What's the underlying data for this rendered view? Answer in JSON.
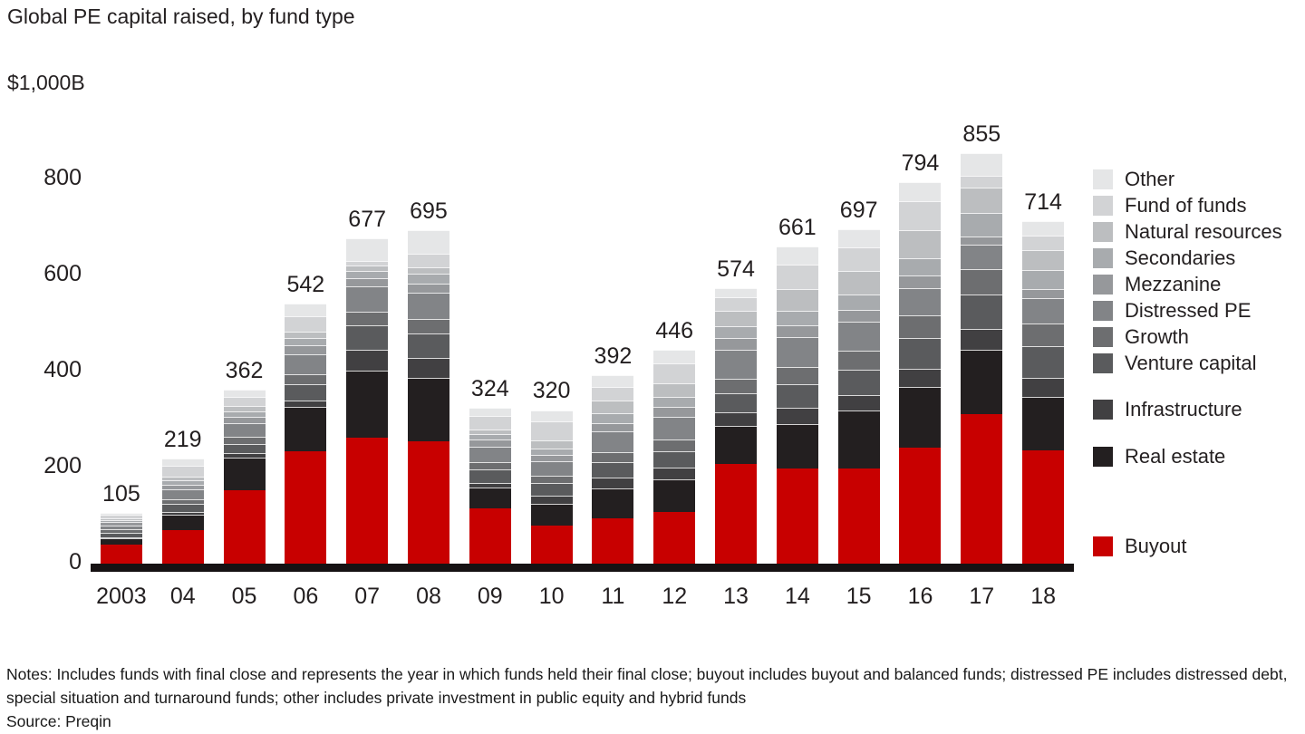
{
  "title": "Global PE capital raised, by fund type",
  "y_axis": {
    "unit_label": "$1,000B",
    "ticks": [
      0,
      200,
      400,
      600,
      800
    ]
  },
  "notes": "Notes: Includes funds with final close and represents the year in which funds held their final close; buyout includes buyout and balanced funds; distressed PE includes distressed debt, special situation and turnaround funds; other includes private investment in public equity and hybrid funds",
  "source": "Source: Preqin",
  "chart_data": {
    "type": "bar",
    "stacked": true,
    "title": "Global PE capital raised, by fund type",
    "unit": "$B",
    "ylim": [
      0,
      1000
    ],
    "grid": false,
    "legend_position": "right",
    "categories": [
      "2003",
      "04",
      "05",
      "06",
      "07",
      "08",
      "09",
      "10",
      "11",
      "12",
      "13",
      "14",
      "15",
      "16",
      "17",
      "18"
    ],
    "totals": [
      105,
      219,
      362,
      542,
      677,
      695,
      324,
      320,
      392,
      446,
      574,
      661,
      697,
      794,
      855,
      714
    ],
    "series": [
      {
        "key": "buyout",
        "name": "Buyout",
        "color": "#c80000",
        "values": [
          40,
          70,
          152,
          234,
          262,
          254,
          116,
          79,
          95,
          108,
          207,
          199,
          199,
          242,
          312,
          235
        ]
      },
      {
        "key": "real_estate",
        "name": "Real estate",
        "color": "#231f20",
        "values": [
          12,
          32,
          68,
          92,
          140,
          132,
          42,
          45,
          62,
          68,
          80,
          92,
          120,
          126,
          134,
          112
        ]
      },
      {
        "key": "infrastructure",
        "name": "Infrastructure",
        "color": "#414042",
        "values": [
          3,
          6,
          10,
          14,
          44,
          42,
          10,
          18,
          22,
          24,
          28,
          34,
          32,
          38,
          43,
          40
        ]
      },
      {
        "key": "venture_capital",
        "name": "Venture capital",
        "color": "#5a5b5d",
        "values": [
          10,
          16,
          20,
          34,
          50,
          52,
          28,
          26,
          32,
          34,
          40,
          48,
          52,
          64,
          72,
          66
        ]
      },
      {
        "key": "growth",
        "name": "Growth",
        "color": "#6d6e70",
        "values": [
          6,
          10,
          14,
          20,
          29,
          30,
          16,
          16,
          22,
          24,
          30,
          36,
          40,
          48,
          52,
          48
        ]
      },
      {
        "key": "distressed_pe",
        "name": "Distressed PE",
        "color": "#828487",
        "values": [
          9,
          20,
          28,
          42,
          53,
          55,
          32,
          30,
          42,
          48,
          60,
          62,
          60,
          56,
          52,
          52
        ]
      },
      {
        "key": "mezzanine",
        "name": "Mezzanine",
        "color": "#96989b",
        "values": [
          6,
          10,
          14,
          18,
          16,
          18,
          14,
          12,
          18,
          20,
          24,
          26,
          26,
          26,
          16,
          18
        ]
      },
      {
        "key": "secondaries",
        "name": "Secondaries",
        "color": "#a8abae",
        "values": [
          5,
          10,
          12,
          16,
          16,
          20,
          12,
          14,
          20,
          22,
          26,
          30,
          32,
          36,
          50,
          40
        ]
      },
      {
        "key": "natural_resources",
        "name": "Natural resources",
        "color": "#bcbec0",
        "values": [
          4,
          8,
          10,
          14,
          10,
          14,
          10,
          16,
          26,
          28,
          32,
          45,
          48,
          58,
          52,
          42
        ]
      },
      {
        "key": "fund_of_funds",
        "name": "Fund of funds",
        "color": "#d2d3d5",
        "values": [
          7,
          22,
          20,
          32,
          10,
          28,
          28,
          40,
          30,
          42,
          28,
          50,
          50,
          60,
          24,
          30
        ]
      },
      {
        "key": "other",
        "name": "Other",
        "color": "#e5e6e7",
        "values": [
          3,
          15,
          14,
          26,
          47,
          50,
          16,
          24,
          23,
          28,
          19,
          39,
          38,
          40,
          48,
          31
        ]
      }
    ]
  },
  "legend": {
    "groups": [
      [
        "other",
        "fund_of_funds",
        "natural_resources",
        "secondaries",
        "mezzanine",
        "distressed_pe",
        "growth",
        "venture_capital"
      ],
      [
        "infrastructure"
      ],
      [
        "real_estate"
      ],
      [
        "buyout"
      ]
    ]
  }
}
